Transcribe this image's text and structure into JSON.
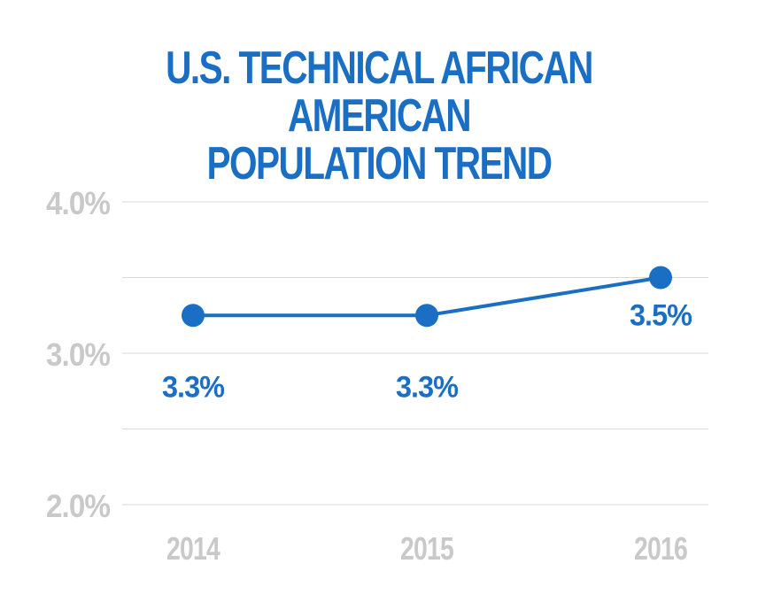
{
  "chart_data": {
    "type": "line",
    "title_lines": [
      "U.S. TECHNICAL AFRICAN AMERICAN",
      "POPULATION TREND"
    ],
    "categories": [
      "2014",
      "2015",
      "2016"
    ],
    "values": [
      3.25,
      3.25,
      3.5
    ],
    "data_labels": [
      "3.3%",
      "3.3%",
      "3.5%"
    ],
    "ylim": [
      2.0,
      4.0
    ],
    "y_ticks": [
      {
        "value": 4.0,
        "label": "4.0%"
      },
      {
        "value": 3.0,
        "label": "3.0%"
      },
      {
        "value": 2.0,
        "label": "2.0%"
      }
    ],
    "gridline_values": [
      4.0,
      3.5,
      3.0,
      2.5,
      2.0
    ],
    "grid": true,
    "legend": "none",
    "colors": {
      "series": "#1a6fc4",
      "grid": "#d9d9d9",
      "tick": "#c9c9c9",
      "title": "#1a6fc4"
    }
  }
}
